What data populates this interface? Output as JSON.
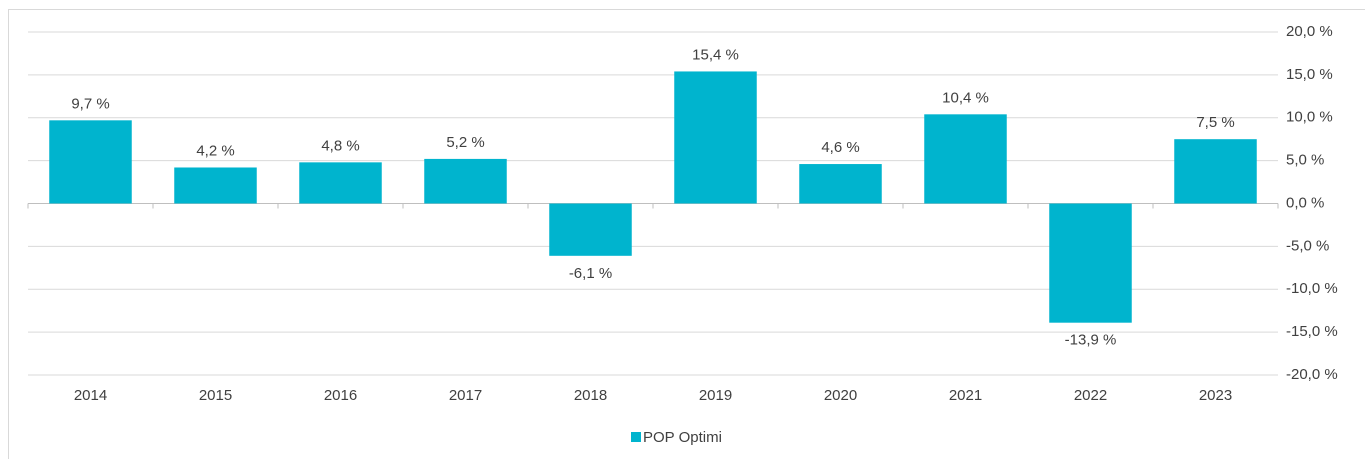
{
  "chart_data": {
    "type": "bar",
    "categories": [
      "2014",
      "2015",
      "2016",
      "2017",
      "2018",
      "2019",
      "2020",
      "2021",
      "2022",
      "2023"
    ],
    "series": [
      {
        "name": "POP Optimi",
        "color": "#00b4ce",
        "values": [
          9.7,
          4.2,
          4.8,
          5.2,
          -6.1,
          15.4,
          4.6,
          10.4,
          -13.9,
          7.5
        ],
        "value_labels": [
          "9,7 %",
          "4,2 %",
          "4,8 %",
          "5,2 %",
          "-6,1 %",
          "15,4 %",
          "4,6 %",
          "10,4 %",
          "-13,9 %",
          "7,5 %"
        ]
      }
    ],
    "ylim": [
      -20,
      20
    ],
    "yticks": [
      {
        "value": -20,
        "label": "-20,0 %"
      },
      {
        "value": -15,
        "label": "-15,0 %"
      },
      {
        "value": -10,
        "label": "-10,0 %"
      },
      {
        "value": -5,
        "label": "-5,0 %"
      },
      {
        "value": 0,
        "label": "0,0 %"
      },
      {
        "value": 5,
        "label": "5,0 %"
      },
      {
        "value": 10,
        "label": "10,0 %"
      },
      {
        "value": 15,
        "label": "15,0 %"
      },
      {
        "value": 20,
        "label": "20,0 %"
      }
    ],
    "grid": true,
    "legend": "bottom"
  }
}
